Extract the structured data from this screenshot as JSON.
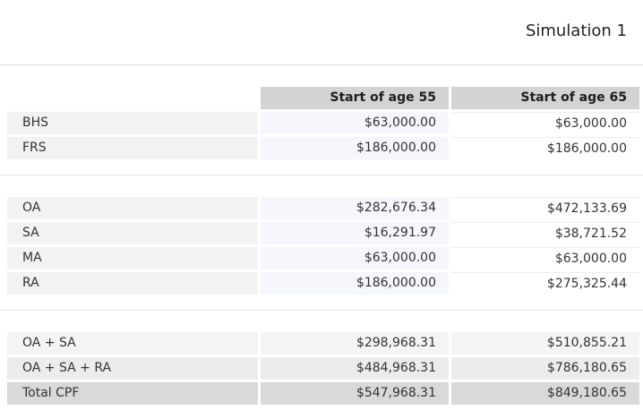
{
  "title": "Simulation 1",
  "headers": [
    "",
    "Start of age 55",
    "Start of age 65"
  ],
  "sections": [
    {
      "rows": [
        {
          "label": "BHS",
          "v55": "$63,000.00",
          "v65": "$63,000.00"
        },
        {
          "label": "FRS",
          "v55": "$186,000.00",
          "v65": "$186,000.00"
        }
      ]
    },
    {
      "rows": [
        {
          "label": "OA",
          "v55": "$282,676.34",
          "v65": "$472,133.69"
        },
        {
          "label": "SA",
          "v55": "$16,291.97",
          "v65": "$38,721.52"
        },
        {
          "label": "MA",
          "v55": "$63,000.00",
          "v65": "$63,000.00"
        },
        {
          "label": "RA",
          "v55": "$186,000.00",
          "v65": "$275,325.44"
        }
      ]
    },
    {
      "rows": [
        {
          "label": "OA + SA",
          "v55": "$298,968.31",
          "v65": "$510,855.21"
        },
        {
          "label": "OA + SA + RA",
          "v55": "$484,968.31",
          "v65": "$786,180.65"
        },
        {
          "label": "Total CPF",
          "v55": "$547,968.31",
          "v65": "$849,180.65"
        }
      ]
    }
  ],
  "colors": {
    "header_bg": "#d3d3d3",
    "label_bg": "#f3f2f1",
    "col55_bg": "#f5f7fc",
    "col65_bg": "#ffffff",
    "total_bg": "#d9d9d9",
    "divider": "#e4e4e4"
  }
}
